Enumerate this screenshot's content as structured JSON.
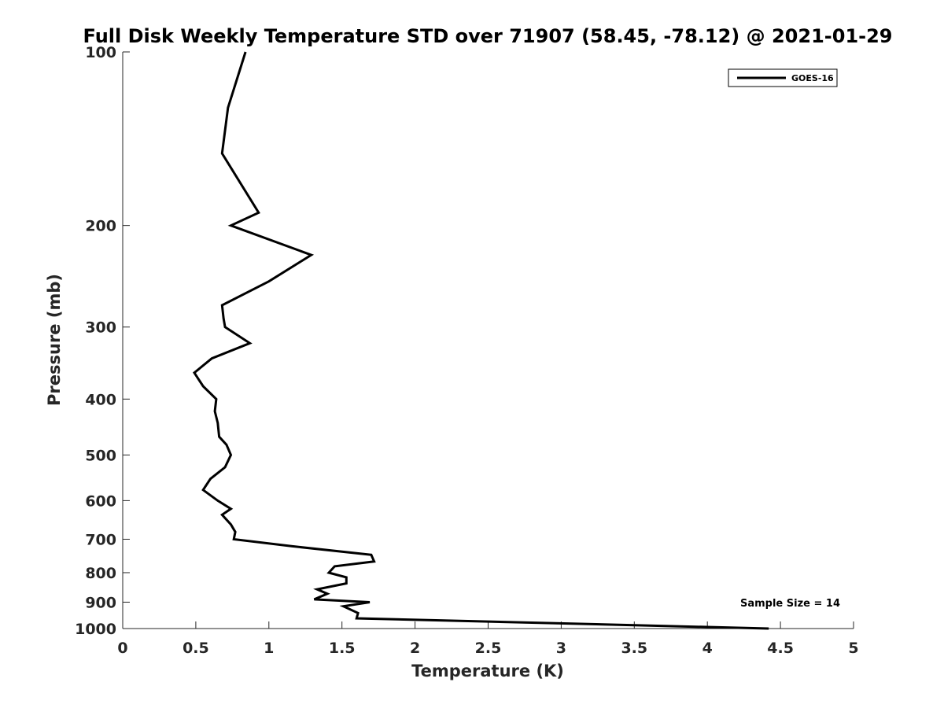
{
  "chart_data": {
    "type": "line",
    "title": "Full Disk Weekly Temperature STD over 71907 (58.45, -78.12) @ 2021-01-29",
    "xlabel": "Temperature (K)",
    "ylabel": "Pressure (mb)",
    "xlim": [
      0,
      5
    ],
    "ylim": [
      100,
      1000
    ],
    "y_scale": "log",
    "y_reversed": true,
    "x_ticks": [
      "0",
      "0.5",
      "1",
      "1.5",
      "2",
      "2.5",
      "3",
      "3.5",
      "4",
      "4.5",
      "5"
    ],
    "y_ticks": [
      "100",
      "200",
      "300",
      "400",
      "500",
      "600",
      "700",
      "800",
      "900",
      "1000"
    ],
    "grid": false,
    "legend_position": "top-right",
    "series": [
      {
        "name": "GOES-16",
        "color": "#000000",
        "points": [
          [
            0.84,
            100
          ],
          [
            0.72,
            125
          ],
          [
            0.68,
            150
          ],
          [
            0.93,
            190
          ],
          [
            0.74,
            200
          ],
          [
            1.29,
            225
          ],
          [
            1.0,
            250
          ],
          [
            0.68,
            275
          ],
          [
            0.69,
            290
          ],
          [
            0.7,
            300
          ],
          [
            0.87,
            320
          ],
          [
            0.61,
            340
          ],
          [
            0.49,
            360
          ],
          [
            0.55,
            380
          ],
          [
            0.64,
            400
          ],
          [
            0.63,
            420
          ],
          [
            0.65,
            440
          ],
          [
            0.66,
            465
          ],
          [
            0.71,
            480
          ],
          [
            0.74,
            500
          ],
          [
            0.7,
            525
          ],
          [
            0.6,
            550
          ],
          [
            0.55,
            575
          ],
          [
            0.65,
            600
          ],
          [
            0.74,
            620
          ],
          [
            0.68,
            635
          ],
          [
            0.74,
            660
          ],
          [
            0.77,
            680
          ],
          [
            0.76,
            700
          ],
          [
            1.16,
            720
          ],
          [
            1.7,
            745
          ],
          [
            1.72,
            765
          ],
          [
            1.45,
            780
          ],
          [
            1.41,
            800
          ],
          [
            1.53,
            815
          ],
          [
            1.53,
            835
          ],
          [
            1.33,
            855
          ],
          [
            1.4,
            870
          ],
          [
            1.31,
            890
          ],
          [
            1.69,
            900
          ],
          [
            1.51,
            915
          ],
          [
            1.61,
            940
          ],
          [
            1.6,
            960
          ],
          [
            4.42,
            1000
          ]
        ]
      }
    ],
    "annotation": "Sample Size = 14"
  }
}
